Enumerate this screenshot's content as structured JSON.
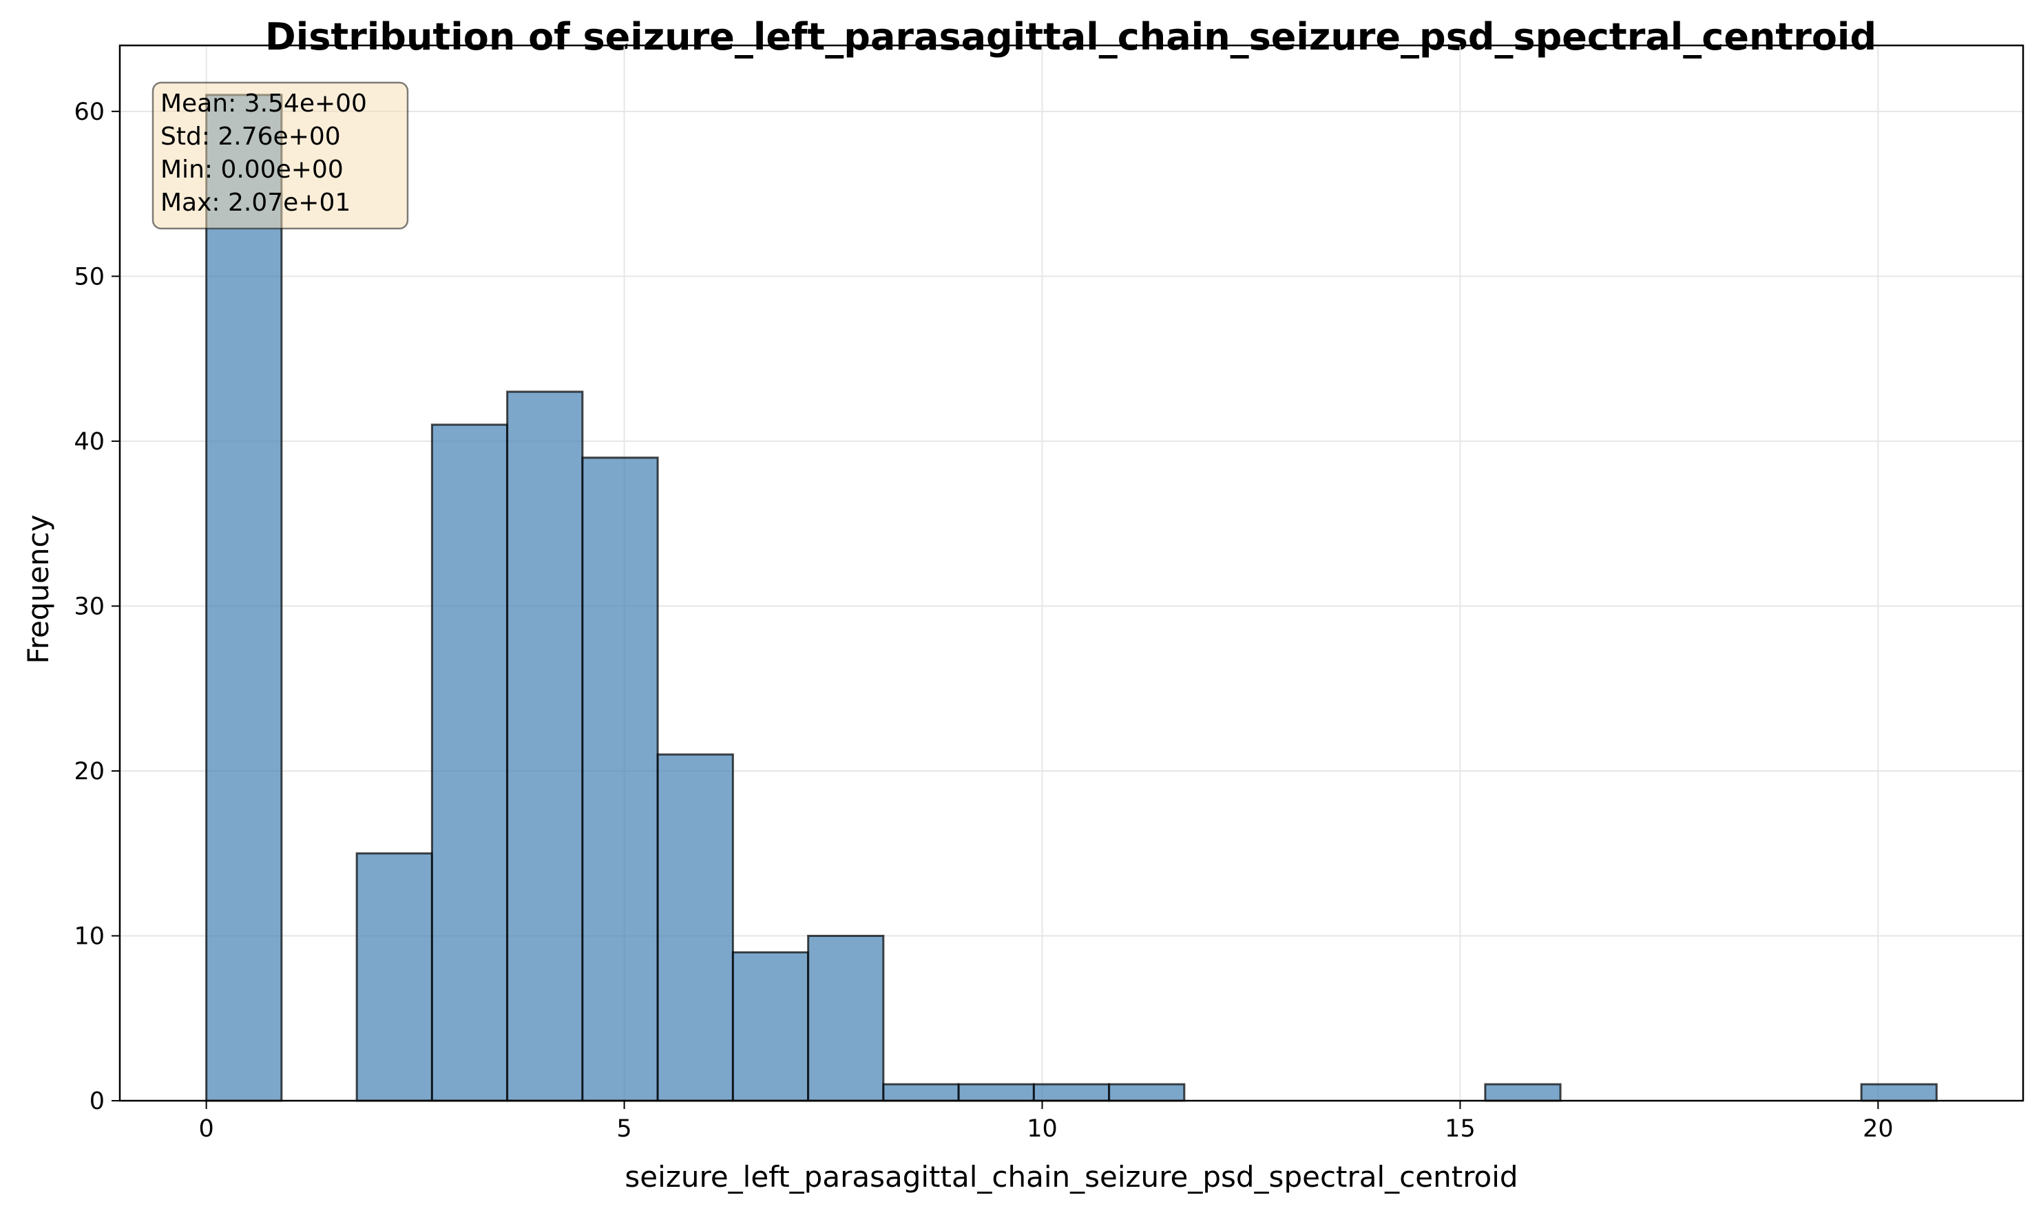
{
  "chart_data": {
    "type": "bar",
    "title": "Distribution of seizure_left_parasagittal_chain_seizure_psd_spectral_centroid",
    "xlabel": "seizure_left_parasagittal_chain_seizure_psd_spectral_centroid",
    "ylabel": "Frequency",
    "bins": {
      "start": 0,
      "end": 20.7,
      "counts": [
        61,
        0,
        15,
        41,
        43,
        39,
        21,
        9,
        10,
        1,
        1,
        1,
        1,
        0,
        0,
        0,
        0,
        1,
        0,
        0,
        0,
        0,
        1
      ]
    },
    "xlim": [
      -1.035,
      21.735
    ],
    "ylim": [
      0,
      64
    ],
    "xticks": [
      0,
      5,
      10,
      15,
      20
    ],
    "yticks": [
      0,
      10,
      20,
      30,
      40,
      50,
      60
    ],
    "grid": true,
    "stats": [
      "Mean: 3.54e+00",
      "Std: 2.76e+00",
      "Min: 0.00e+00",
      "Max: 2.07e+01"
    ],
    "colors": {
      "bar_fill": "#4682b4",
      "bar_edge": "#000000",
      "stats_box_fill": "#f5deb3",
      "grid": "#e6e6e6"
    }
  }
}
